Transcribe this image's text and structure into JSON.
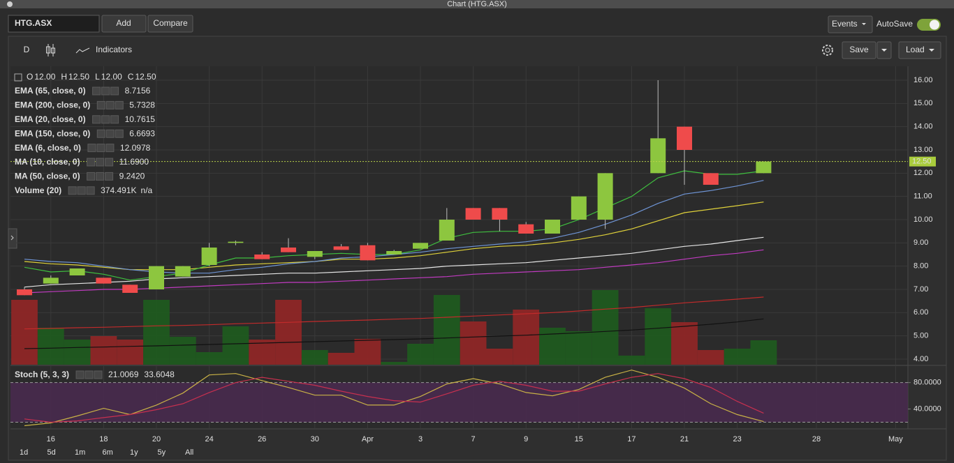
{
  "window_title": "Chart (HTG.ASX)",
  "toolbar": {
    "symbol": "HTG.ASX",
    "add": "Add",
    "compare": "Compare",
    "events": "Events",
    "autosave": "AutoSave"
  },
  "chart_toolbar": {
    "period": "D",
    "indicators": "Indicators",
    "save": "Save",
    "load": "Load"
  },
  "ohlc": [
    {
      "label": "O",
      "value": "12.00"
    },
    {
      "label": "H",
      "value": "12.50"
    },
    {
      "label": "L",
      "value": "12.00"
    },
    {
      "label": "C",
      "value": "12.50"
    }
  ],
  "ranges": [
    "1d",
    "5d",
    "1m",
    "6m",
    "1y",
    "5y",
    "All"
  ],
  "chart_data": [
    {
      "type": "candlestick",
      "categories": [
        null,
        "16",
        null,
        "18",
        null,
        "20",
        null,
        "24",
        null,
        "26",
        null,
        "30",
        null,
        "Apr",
        null,
        "3",
        null,
        "7",
        null,
        "9",
        null,
        "15",
        null,
        "17",
        null,
        "21",
        null,
        "23",
        null,
        null,
        "28",
        null,
        null,
        "May"
      ],
      "open": [
        7.0,
        7.25,
        7.6,
        7.5,
        7.2,
        7.0,
        7.55,
        8.05,
        9.0,
        8.5,
        8.8,
        8.4,
        8.85,
        8.9,
        8.5,
        8.75,
        9.1,
        10.5,
        10.5,
        9.8,
        9.4,
        10.0,
        10.0,
        null,
        12.0,
        14.0,
        12.0,
        null,
        12.0,
        null,
        null,
        null,
        null,
        null
      ],
      "high": [
        7.1,
        7.6,
        7.9,
        7.5,
        7.2,
        8.0,
        8.0,
        9.0,
        9.1,
        8.6,
        9.2,
        8.65,
        8.95,
        9.0,
        8.7,
        9.0,
        10.5,
        10.5,
        10.5,
        9.9,
        10.0,
        11.0,
        12.0,
        null,
        16.0,
        14.0,
        12.0,
        null,
        12.5,
        null,
        null,
        null,
        null,
        null
      ],
      "low": [
        6.75,
        7.25,
        7.6,
        7.25,
        6.85,
        7.0,
        7.55,
        8.0,
        8.9,
        8.3,
        8.6,
        8.3,
        8.7,
        8.25,
        8.5,
        8.75,
        9.1,
        10.0,
        9.5,
        9.4,
        9.4,
        10.0,
        9.6,
        null,
        12.0,
        11.5,
        11.5,
        null,
        12.0,
        null,
        null,
        null,
        null,
        null
      ],
      "close": [
        6.75,
        7.5,
        7.9,
        7.25,
        6.85,
        8.0,
        8.0,
        8.8,
        9.05,
        8.3,
        8.6,
        8.65,
        8.7,
        8.25,
        8.65,
        9.0,
        10.0,
        10.0,
        10.0,
        9.4,
        10.0,
        11.0,
        12.0,
        null,
        13.5,
        13.0,
        11.5,
        null,
        12.5,
        null,
        null,
        null,
        null,
        null
      ],
      "up_color": "#8dc63f",
      "down_color": "#ef4b4b",
      "ylim": [
        3.76,
        16.6
      ],
      "yticks": [
        {
          "value": 4,
          "label": "4.00"
        },
        {
          "value": 5,
          "label": "5.00"
        },
        {
          "value": 6,
          "label": "6.00"
        },
        {
          "value": 7,
          "label": "7.00"
        },
        {
          "value": 8,
          "label": "8.00"
        },
        {
          "value": 9,
          "label": "9.00"
        },
        {
          "value": 10,
          "label": "10.00"
        },
        {
          "value": 11,
          "label": "11.00"
        },
        {
          "value": 12,
          "label": "12.00"
        },
        {
          "value": 13,
          "label": "13.00"
        },
        {
          "value": 14,
          "label": "14.00"
        },
        {
          "value": 15,
          "label": "15.00"
        },
        {
          "value": 16,
          "label": "16.00"
        }
      ],
      "last_price": {
        "value": 12.5,
        "label": "12.50"
      },
      "grid": true,
      "series": [
        {
          "name": "EMA (65, close, 0)",
          "value_label": "8.7156",
          "color": "#c23bc2",
          "values": [
            6.85,
            6.9,
            6.95,
            7.0,
            7.0,
            7.05,
            7.1,
            7.15,
            7.2,
            7.25,
            7.3,
            7.3,
            7.35,
            7.4,
            7.45,
            7.5,
            7.55,
            7.65,
            7.7,
            7.75,
            7.8,
            7.85,
            7.95,
            8.05,
            8.15,
            8.3,
            8.45,
            8.55,
            8.7,
            null,
            null,
            null,
            null,
            null
          ]
        },
        {
          "name": "EMA (200, close, 0)",
          "value_label": "5.7328",
          "color": "#111111",
          "values": [
            4.45,
            4.47,
            4.5,
            4.52,
            4.55,
            4.57,
            4.6,
            4.63,
            4.66,
            4.69,
            4.72,
            4.75,
            4.78,
            4.81,
            4.84,
            4.87,
            4.91,
            4.95,
            4.99,
            5.03,
            5.08,
            5.13,
            5.19,
            5.25,
            5.33,
            5.41,
            5.5,
            5.6,
            5.73,
            null,
            null,
            null,
            null,
            null
          ]
        },
        {
          "name": "EMA (20, close, 0)",
          "value_label": "10.7615",
          "color": "#e0d23a",
          "values": [
            8.2,
            8.1,
            8.05,
            7.95,
            7.85,
            7.85,
            7.85,
            7.95,
            8.05,
            8.1,
            8.15,
            8.2,
            8.3,
            8.3,
            8.35,
            8.45,
            8.6,
            8.75,
            8.85,
            8.9,
            9.0,
            9.15,
            9.35,
            9.6,
            9.95,
            10.3,
            10.45,
            10.6,
            10.76,
            null,
            null,
            null,
            null,
            null
          ]
        },
        {
          "name": "EMA (150, close, 0)",
          "value_label": "6.6693",
          "color": "#c22b2b",
          "values": [
            5.3,
            5.32,
            5.35,
            5.37,
            5.4,
            5.43,
            5.45,
            5.48,
            5.52,
            5.55,
            5.58,
            5.62,
            5.65,
            5.68,
            5.72,
            5.75,
            5.8,
            5.85,
            5.9,
            5.95,
            6.0,
            6.07,
            6.15,
            6.22,
            6.32,
            6.42,
            6.5,
            6.58,
            6.67,
            null,
            null,
            null,
            null,
            null
          ]
        },
        {
          "name": "EMA (6, close, 0)",
          "value_label": "12.0978",
          "color": "#3fbf3f",
          "values": [
            7.95,
            7.75,
            7.8,
            7.65,
            7.4,
            7.55,
            7.7,
            8.05,
            8.35,
            8.35,
            8.45,
            8.5,
            8.55,
            8.5,
            8.5,
            8.7,
            9.2,
            9.45,
            9.5,
            9.5,
            9.6,
            10.0,
            10.5,
            11.0,
            11.8,
            12.1,
            11.95,
            11.95,
            12.1,
            null,
            null,
            null,
            null,
            null
          ]
        },
        {
          "name": "MA (10, close, 0)",
          "value_label": "11.6900",
          "color": "#6f95d6",
          "values": [
            8.3,
            8.2,
            8.15,
            8.0,
            7.85,
            7.75,
            7.7,
            7.7,
            7.85,
            7.95,
            8.1,
            8.2,
            8.35,
            8.4,
            8.5,
            8.6,
            8.75,
            8.85,
            8.95,
            9.05,
            9.2,
            9.45,
            9.8,
            10.2,
            10.7,
            11.1,
            11.25,
            11.45,
            11.69,
            null,
            null,
            null,
            null,
            null
          ]
        },
        {
          "name": "MA (50, close, 0)",
          "value_label": "9.2420",
          "color": "#e6e6e6",
          "values": [
            7.1,
            7.2,
            7.25,
            7.3,
            7.35,
            7.45,
            7.5,
            7.55,
            7.6,
            7.65,
            7.7,
            7.7,
            7.75,
            7.8,
            7.85,
            7.9,
            8.0,
            8.05,
            8.1,
            8.15,
            8.25,
            8.35,
            8.45,
            8.55,
            8.7,
            8.85,
            8.95,
            9.1,
            9.24,
            null,
            null,
            null,
            null,
            null
          ]
        }
      ],
      "volume": {
        "name": "Volume (20)",
        "value_label": "374.491K",
        "extra": "n/a",
        "color": "#2e8b2e",
        "ylim": [
          0,
          4280
        ],
        "values": [
          930,
          530,
          360,
          410,
          360,
          930,
          400,
          180,
          550,
          360,
          930,
          210,
          170,
          370,
          40,
          300,
          1000,
          620,
          230,
          790,
          530,
          480,
          1070,
          130,
          810,
          610,
          210,
          230,
          350,
          null,
          null,
          null,
          null,
          null
        ]
      }
    },
    {
      "type": "line",
      "title": "Stoch (5, 3, 3)",
      "ylim": [
        10,
        105
      ],
      "yticks": [
        {
          "value": 40,
          "label": "40.0000"
        },
        {
          "value": 80,
          "label": "80.0000"
        }
      ],
      "levels": [
        20,
        80
      ],
      "band_color": "#4a2a50",
      "series": [
        {
          "value_label": "21.0069",
          "color": "#c9b246",
          "label_color": "#e8e030",
          "values": [
            14.7,
            19,
            29.5,
            41,
            31.6,
            46,
            64,
            91.6,
            93.7,
            83,
            72.6,
            61,
            61,
            46,
            46,
            59,
            78,
            86,
            78,
            65,
            60,
            69.5,
            88,
            99,
            88,
            71.6,
            48,
            31.6,
            21,
            null,
            null,
            null,
            null,
            null
          ]
        },
        {
          "value_label": "33.6048",
          "color": "#c8304f",
          "label_color": "#d02828",
          "values": [
            25,
            20,
            22,
            27,
            31.6,
            39,
            48,
            65,
            80,
            88,
            82,
            76,
            67,
            59,
            52.6,
            50.5,
            63,
            76,
            82,
            76,
            67,
            67,
            78,
            88,
            93.7,
            86,
            72.6,
            51.6,
            33.6,
            null,
            null,
            null,
            null,
            null
          ]
        }
      ]
    }
  ]
}
